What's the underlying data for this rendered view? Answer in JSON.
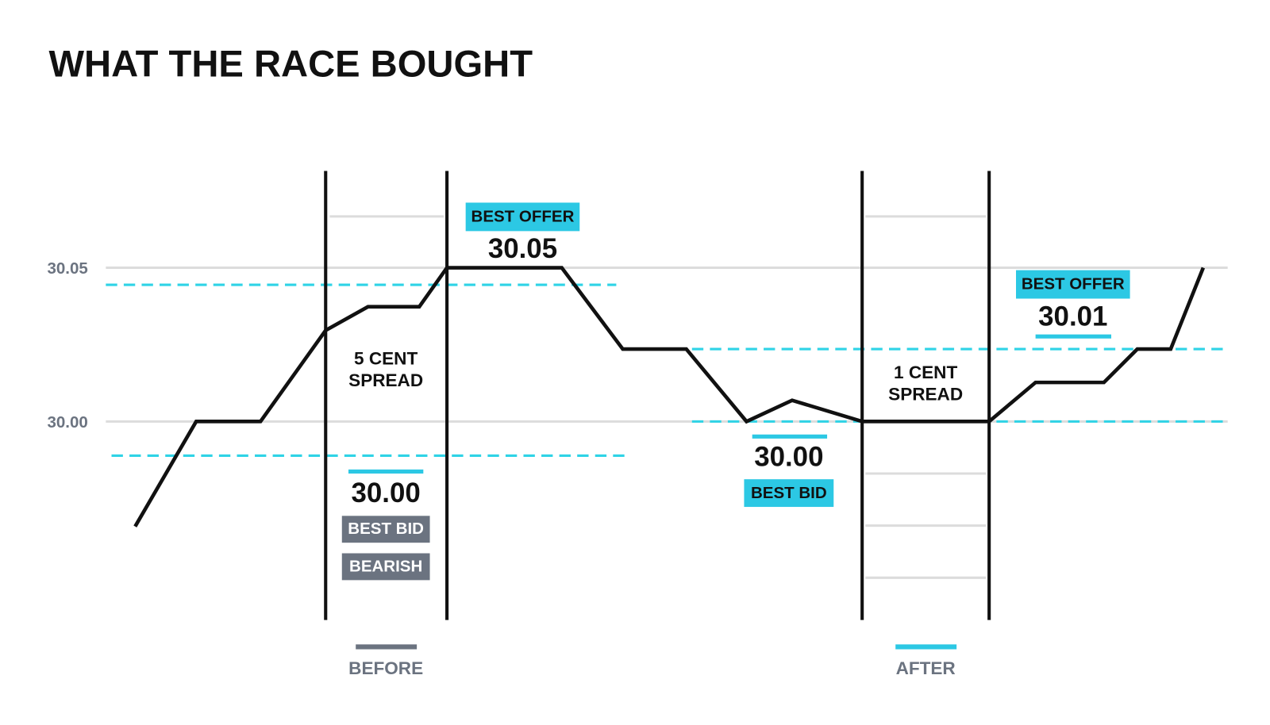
{
  "title": "WHAT THE RACE BOUGHT",
  "axis": {
    "labels": [
      "30.05",
      "30.00"
    ]
  },
  "before": {
    "spread": [
      "5 CENT",
      "SPREAD"
    ],
    "best_offer": {
      "tag": "BEST OFFER",
      "price": "30.05"
    },
    "best_bid": {
      "price": "30.00",
      "tag": "BEST BID",
      "sentiment": "BEARISH"
    }
  },
  "after": {
    "spread": [
      "1 CENT",
      "SPREAD"
    ],
    "best_offer": {
      "tag": "BEST OFFER",
      "price": "30.01"
    },
    "best_bid": {
      "price": "30.00",
      "tag": "BEST BID"
    }
  },
  "legend": [
    "BEFORE",
    "AFTER"
  ]
}
